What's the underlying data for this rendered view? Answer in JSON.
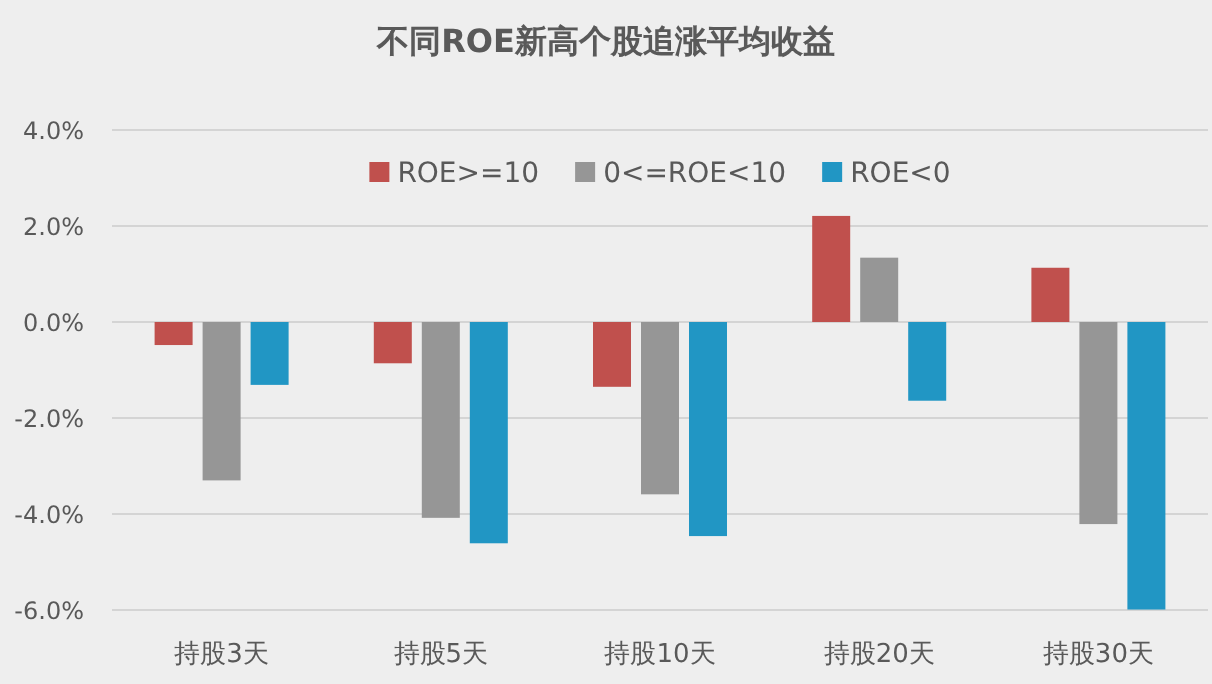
{
  "chart_data": {
    "type": "bar",
    "title": "不同ROE新高个股追涨平均收益",
    "categories": [
      "持股3天",
      "持股5天",
      "持股10天",
      "持股20天",
      "持股30天"
    ],
    "series": [
      {
        "name": "ROE>=10",
        "color": "#c0504d",
        "values": [
          -0.48,
          -0.86,
          -1.35,
          2.21,
          1.13
        ]
      },
      {
        "name": "0<=ROE<10",
        "color": "#969696",
        "values": [
          -3.3,
          -4.08,
          -3.59,
          1.34,
          -4.21
        ]
      },
      {
        "name": "ROE<0",
        "color": "#2196c4",
        "values": [
          -1.31,
          -4.61,
          -4.46,
          -1.64,
          -5.99
        ]
      }
    ],
    "ylim": [
      -6,
      4
    ],
    "yticks": [
      {
        "value": -6,
        "label": "-6.0%"
      },
      {
        "value": -4,
        "label": "-4.0%"
      },
      {
        "value": -2,
        "label": "-2.0%"
      },
      {
        "value": 0,
        "label": "0.0%"
      },
      {
        "value": 2,
        "label": "2.0%"
      },
      {
        "value": 4,
        "label": "4.0%"
      }
    ],
    "grid": "y",
    "legend": "top"
  }
}
